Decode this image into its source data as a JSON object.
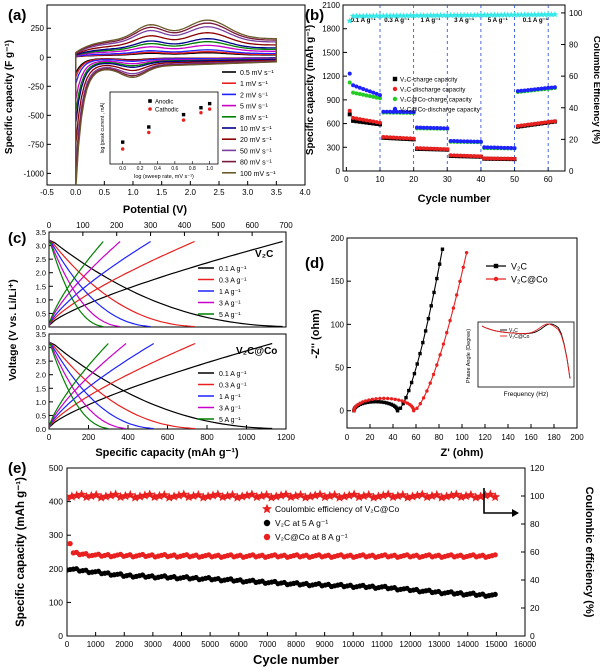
{
  "chart_data": [
    {
      "panel": "(a)",
      "type": "line",
      "xlabel": "Potential (V)",
      "ylabel": "Specific capacity (F g⁻¹)",
      "xlim": [
        -0.5,
        4.0
      ],
      "ylim": [
        -1100,
        450
      ],
      "xticks": [
        "-0.5",
        "0.0",
        "0.5",
        "1.0",
        "1.5",
        "2.0",
        "2.5",
        "3.0",
        "3.5",
        "4.0"
      ],
      "yticks": [
        "-1000",
        "-750",
        "-500",
        "-250",
        "0",
        "250"
      ],
      "legend_position": "right",
      "series": [
        {
          "name": "0.5 mV s⁻¹",
          "color": "#000000",
          "scale": 0.12
        },
        {
          "name": "1 mV s⁻¹",
          "color": "#e8201f",
          "scale": 0.15
        },
        {
          "name": "2 mV s⁻¹",
          "color": "#1e22ff",
          "scale": 0.2
        },
        {
          "name": "5 mV s⁻¹",
          "color": "#c800c8",
          "scale": 0.32
        },
        {
          "name": "8 mV s⁻¹",
          "color": "#008000",
          "scale": 0.42
        },
        {
          "name": "10 mV s⁻¹",
          "color": "#00008b",
          "scale": 0.5
        },
        {
          "name": "20 mV s⁻¹",
          "color": "#8b0000",
          "scale": 0.66
        },
        {
          "name": "50 mV s⁻¹",
          "color": "#7b3fa0",
          "scale": 0.82
        },
        {
          "name": "80 mV s⁻¹",
          "color": "#7a1a3a",
          "scale": 0.92
        },
        {
          "name": "100 mV s⁻¹",
          "color": "#6b5a2a",
          "scale": 1.0
        }
      ],
      "inset": {
        "xlabel": "log (sweep rate, mV s⁻¹)",
        "ylabel": "log (peak current , mA)",
        "xlim": [
          -0.1,
          1.05
        ],
        "ylim": [
          -2.4,
          0.0
        ],
        "xticks": [
          "0.0",
          "0.2",
          "0.4",
          "0.6",
          "0.8",
          "1.0"
        ],
        "series": [
          {
            "name": "Anodic",
            "color": "#000000",
            "x": [
              0,
              0.3,
              0.7,
              0.9,
              1.0
            ],
            "y": [
              -1.75,
              -1.2,
              -0.75,
              -0.5,
              -0.35
            ]
          },
          {
            "name": "Cathodic",
            "color": "#e8201f",
            "x": [
              0,
              0.3,
              0.7,
              0.9,
              1.0
            ],
            "y": [
              -2.0,
              -1.4,
              -0.95,
              -0.68,
              -0.55
            ]
          }
        ]
      }
    },
    {
      "panel": "(b)",
      "type": "scatter",
      "xlabel": "Cycle number",
      "ylabel": "Specific capacity (mAh g⁻¹)",
      "y2label": "Columbic Efficiency (%)",
      "xlim": [
        -1,
        65
      ],
      "ylim": [
        0,
        2100
      ],
      "y2lim": [
        0,
        105
      ],
      "xticks": [
        "0",
        "10",
        "20",
        "30",
        "40",
        "50",
        "60"
      ],
      "yticks": [
        "0",
        "300",
        "600",
        "900",
        "1200",
        "1500",
        "1800",
        "2100"
      ],
      "y2ticks": [
        "0",
        "20",
        "40",
        "60",
        "80",
        "100"
      ],
      "rate_labels": [
        "0.1 A g⁻¹",
        "0.3 A g⁻¹",
        "1 A g⁻¹",
        "3 A g⁻¹",
        "5 A g⁻¹",
        "0.1 A g⁻¹"
      ],
      "dividers": [
        10,
        20,
        30,
        40,
        50,
        60
      ],
      "series": [
        {
          "name": "V₂C-charge capacity",
          "color": "#000000",
          "marker": "square",
          "segments": [
            [
              1,
              10,
              640,
              590
            ],
            [
              11,
              20,
              420,
              400
            ],
            [
              21,
              30,
              280,
              270
            ],
            [
              31,
              40,
              190,
              180
            ],
            [
              41,
              50,
              155,
              150
            ],
            [
              51,
              62,
              560,
              625
            ]
          ]
        },
        {
          "name": "V₂C-discharge capacity",
          "color": "#e8201f",
          "marker": "circle",
          "segments": [
            [
              1,
              10,
              680,
              610
            ],
            [
              11,
              20,
              430,
              410
            ],
            [
              21,
              30,
              290,
              275
            ],
            [
              31,
              40,
              200,
              185
            ],
            [
              41,
              50,
              160,
              155
            ],
            [
              51,
              62,
              570,
              630
            ]
          ]
        },
        {
          "name": "V₂C@Co-charge capacity",
          "color": "#22cc22",
          "marker": "circle",
          "segments": [
            [
              1,
              10,
              1000,
              920
            ],
            [
              11,
              20,
              740,
              735
            ],
            [
              21,
              30,
              540,
              535
            ],
            [
              31,
              40,
              370,
              365
            ],
            [
              41,
              50,
              290,
              285
            ],
            [
              51,
              62,
              1000,
              1050
            ]
          ]
        },
        {
          "name": "V₂C@Co-discharge capacity",
          "color": "#1e22ff",
          "marker": "circle",
          "segments": [
            [
              1,
              10,
              1100,
              960
            ],
            [
              11,
              20,
              750,
              745
            ],
            [
              21,
              30,
              550,
              540
            ],
            [
              31,
              40,
              380,
              370
            ],
            [
              41,
              50,
              300,
              290
            ],
            [
              51,
              62,
              1010,
              1060
            ]
          ]
        },
        {
          "name": "Coulombic efficiency",
          "color": "#35e8e8",
          "marker": "star",
          "axis": "y2",
          "segments": [
            [
              1,
              62,
              98,
              99
            ]
          ]
        }
      ]
    },
    {
      "panel": "(c)",
      "type": "line",
      "xlabel": "Specific capacity (mAh g⁻¹)",
      "ylabel": "Voltage (V vs. Li/Li⁺)",
      "top_xlim": [
        0,
        700
      ],
      "bottom_xlim": [
        0,
        1200
      ],
      "ylim": [
        0,
        3.5
      ],
      "top_xticks": [
        "0",
        "100",
        "200",
        "300",
        "400",
        "500",
        "600",
        "700"
      ],
      "bottom_xticks": [
        "0",
        "200",
        "400",
        "600",
        "800",
        "1000",
        "1200"
      ],
      "yticks": [
        "0.0",
        "0.5",
        "1.0",
        "1.5",
        "2.0",
        "2.5",
        "3.0",
        "3.5"
      ],
      "top": {
        "label": "V₂C",
        "series": [
          {
            "name": "0.1 A g⁻¹",
            "color": "#000000",
            "capacity": 690
          },
          {
            "name": "0.3 A g⁻¹",
            "color": "#e8201f",
            "capacity": 430
          },
          {
            "name": "1 A g⁻¹",
            "color": "#1e22ff",
            "capacity": 300
          },
          {
            "name": "3 A g⁻¹",
            "color": "#c800c8",
            "capacity": 210
          },
          {
            "name": "5 A g⁻¹",
            "color": "#008000",
            "capacity": 160
          }
        ]
      },
      "bottom": {
        "label": "V₂C@Co",
        "series": [
          {
            "name": "0.1 A g⁻¹",
            "color": "#000000",
            "capacity": 1130
          },
          {
            "name": "0.3 A g⁻¹",
            "color": "#e8201f",
            "capacity": 740
          },
          {
            "name": "1 A g⁻¹",
            "color": "#1e22ff",
            "capacity": 530
          },
          {
            "name": "3 A g⁻¹",
            "color": "#c800c8",
            "capacity": 390
          },
          {
            "name": "5 A g⁻¹",
            "color": "#008000",
            "capacity": 300
          }
        ]
      }
    },
    {
      "panel": "(d)",
      "type": "line",
      "xlabel": "Z' (ohm)",
      "ylabel": "-Z'' (ohm)",
      "xlim": [
        0,
        200
      ],
      "ylim": [
        -20,
        200
      ],
      "xticks": [
        "0",
        "20",
        "40",
        "60",
        "80",
        "100",
        "120",
        "140",
        "160",
        "180",
        "200"
      ],
      "yticks": [
        "0",
        "50",
        "100",
        "150",
        "200"
      ],
      "series": [
        {
          "name": "V₂C",
          "color": "#000000",
          "marker": "square"
        },
        {
          "name": "V₂C@Co",
          "color": "#e8201f",
          "marker": "circle"
        }
      ],
      "inset": {
        "xlabel": "Frequency (Hz)",
        "ylabel": "Phase Angle (Degree)",
        "series": [
          {
            "name": "V₂C",
            "color": "#000000"
          },
          {
            "name": "V₂C@Co",
            "color": "#e8201f"
          }
        ]
      }
    },
    {
      "panel": "(e)",
      "type": "scatter",
      "xlabel": "Cycle number",
      "ylabel": "Specific capacity (mAh g⁻¹)",
      "y2label": "Coulombic efficiency (%)",
      "xlim": [
        0,
        16000
      ],
      "ylim": [
        0,
        500
      ],
      "y2lim": [
        0,
        120
      ],
      "xticks": [
        "0",
        "1000",
        "2000",
        "3000",
        "4000",
        "5000",
        "6000",
        "7000",
        "8000",
        "9000",
        "10000",
        "11000",
        "12000",
        "13000",
        "14000",
        "15000",
        "16000"
      ],
      "yticks": [
        "0",
        "100",
        "200",
        "300",
        "400",
        "500"
      ],
      "y2ticks": [
        "0",
        "20",
        "40",
        "60",
        "80",
        "100",
        "120"
      ],
      "series": [
        {
          "name": "Coulombic efficiency of V₂C@Co",
          "color": "#e8201f",
          "marker": "star",
          "axis": "y2",
          "x": [
            0,
            15000
          ],
          "y": [
            100,
            100
          ]
        },
        {
          "name": "V₂C at 5 A g⁻¹",
          "color": "#000000",
          "marker": "circle",
          "x": [
            0,
            2000,
            5000,
            8000,
            11000,
            13000,
            15000
          ],
          "y": [
            200,
            180,
            170,
            155,
            145,
            130,
            120
          ]
        },
        {
          "name": "V₂C@Co at 8 A g⁻¹",
          "color": "#e8201f",
          "marker": "circle",
          "x": [
            0,
            1000,
            5000,
            10000,
            15000
          ],
          "y": [
            248,
            240,
            238,
            238,
            238
          ]
        }
      ]
    }
  ]
}
